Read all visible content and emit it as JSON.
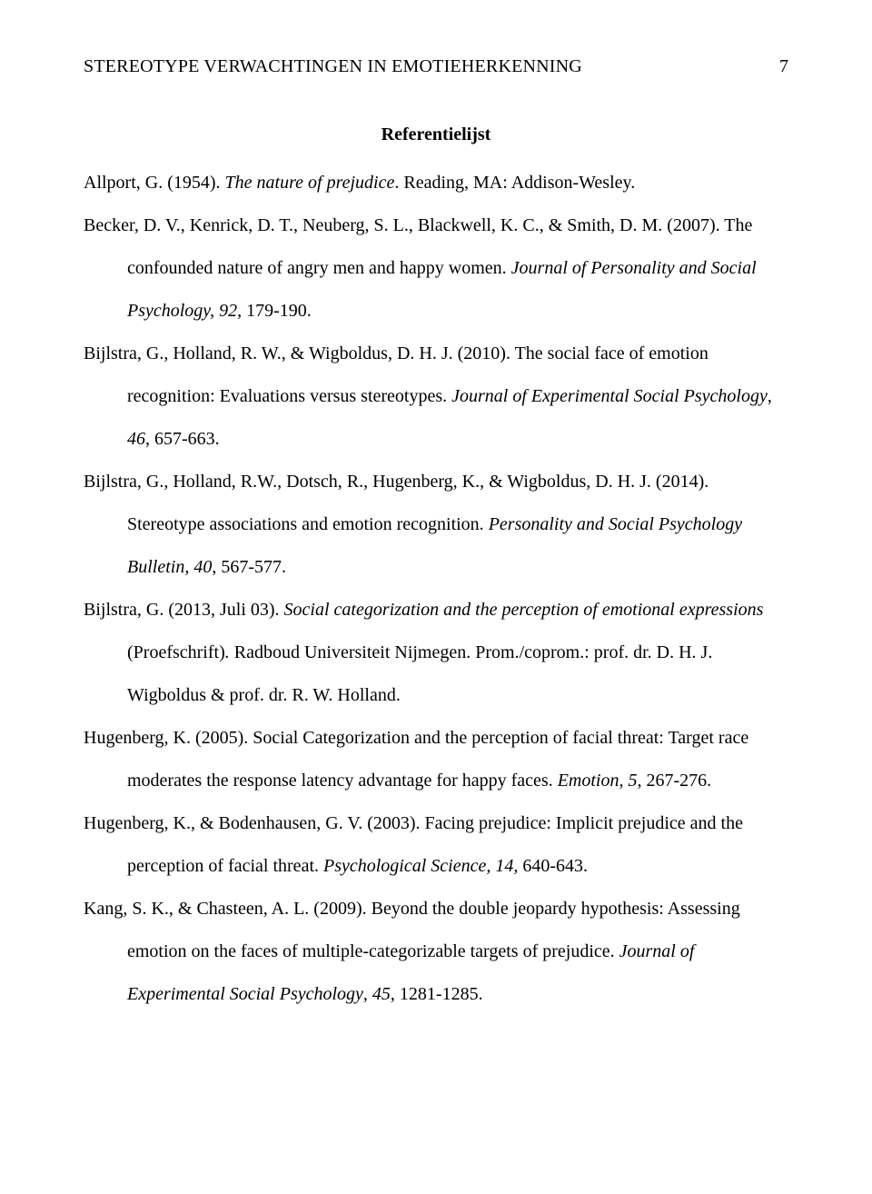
{
  "header": {
    "running_head": "STEREOTYPE VERWACHTINGEN IN EMOTIEHERKENNING",
    "page_number": "7"
  },
  "section": {
    "title": "Referentielijst"
  },
  "refs": {
    "r1": {
      "a": "Allport, G. (1954). ",
      "i1": "The nature of prejudice",
      "b": ". Reading, MA: Addison-Wesley."
    },
    "r2": {
      "a": "Becker, D. V., Kenrick, D. T., Neuberg, S. L., Blackwell, K. C., & Smith, D. M. (2007). The confounded nature of angry men and happy women. ",
      "i1": "Journal of Personality and Social Psychology, 92",
      "b": ", 179-190."
    },
    "r3": {
      "a": "Bijlstra, G., Holland, R. W., & Wigboldus, D. H. J. (2010). The social face of emotion recognition: Evaluations versus stereotypes. ",
      "i1": "Journal of Experimental Social Psychology",
      "b": ", ",
      "i2": "46",
      "c": ", 657-663."
    },
    "r4": {
      "a": "Bijlstra, G., Holland, R.W., Dotsch, R., Hugenberg, K., & Wigboldus, D. H. J. (2014). Stereotype associations and emotion recognition. ",
      "i1": "Personality and Social Psychology Bulletin, 40",
      "b": ", 567-577."
    },
    "r5": {
      "a": "Bijlstra, G. (2013, Juli 03). ",
      "i1": "Social categorization and the perception of emotional expressions ",
      "b": "(Proefschrift)",
      "i2": ". ",
      "c": "Radboud Universiteit Nijmegen. Prom./coprom.: prof. dr. D. H. J. Wigboldus & prof. dr. R. W. Holland."
    },
    "r6": {
      "a": "Hugenberg, K. (2005). Social Categorization and the perception of facial threat: Target race moderates the response latency advantage for happy faces. ",
      "i1": "Emotion, 5",
      "b": ", 267-276."
    },
    "r7": {
      "a": "Hugenberg, K., & Bodenhausen, G. V. (2003). Facing prejudice: Implicit prejudice and the perception of facial threat. ",
      "i1": "Psychological Science, 14",
      "b": ", 640-643."
    },
    "r8": {
      "a": "Kang, S. K., & Chasteen, A. L. (2009). Beyond the double jeopardy hypothesis: Assessing emotion on the faces of multiple-categorizable targets of prejudice. ",
      "i1": "Journal of Experimental Social Psychology",
      "b": ", ",
      "i2": "45",
      "c": ", 1281-1285."
    }
  }
}
